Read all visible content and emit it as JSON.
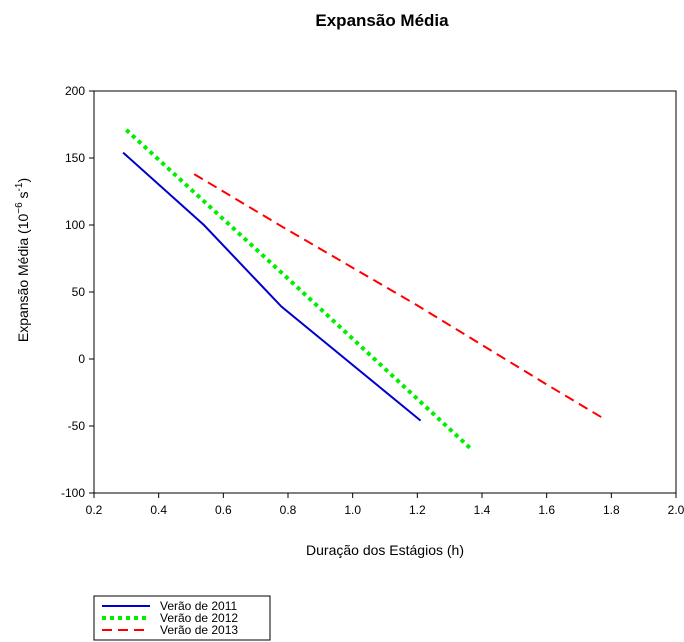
{
  "chart_data": {
    "type": "line",
    "title": "Expansão Média",
    "xlabel": "Duração dos Estágios (h)",
    "ylabel": {
      "base": "Expansão Média (10",
      "exp1": "−6",
      "mid": " s",
      "exp2": "-1",
      "end": ")"
    },
    "xlim": [
      0.2,
      2.0
    ],
    "ylim": [
      -100,
      200
    ],
    "x_ticks": [
      0.2,
      0.4,
      0.6,
      0.8,
      1.0,
      1.2,
      1.4,
      1.6,
      1.8,
      2.0
    ],
    "x_tick_labels": [
      "0.2",
      "0.4",
      "0.6",
      "0.8",
      "1.0",
      "1.2",
      "1.4",
      "1.6",
      "1.8",
      "2.0"
    ],
    "y_ticks": [
      -100,
      -50,
      0,
      50,
      100,
      150,
      200
    ],
    "y_tick_labels": [
      "-100",
      "-50",
      "0",
      "50",
      "100",
      "150",
      "200"
    ],
    "grid": false,
    "legend_position": "bottom-left, below plot",
    "series": [
      {
        "name": "Verão de 2011",
        "color": "#0000cc",
        "style": "solid",
        "x": [
          0.29,
          0.54,
          0.78,
          1.21
        ],
        "y": [
          154,
          100,
          39,
          -46
        ]
      },
      {
        "name": "Verão de 2012",
        "color": "#00ee00",
        "style": "dotted",
        "x": [
          0.3,
          0.8,
          1.37
        ],
        "y": [
          171,
          60,
          -68
        ]
      },
      {
        "name": "Verão de 2013",
        "color": "#ff0000",
        "style": "dashed",
        "x": [
          0.51,
          0.78,
          1.2,
          1.6,
          1.78
        ],
        "y": [
          138,
          99,
          40,
          -19,
          -45
        ]
      }
    ]
  }
}
